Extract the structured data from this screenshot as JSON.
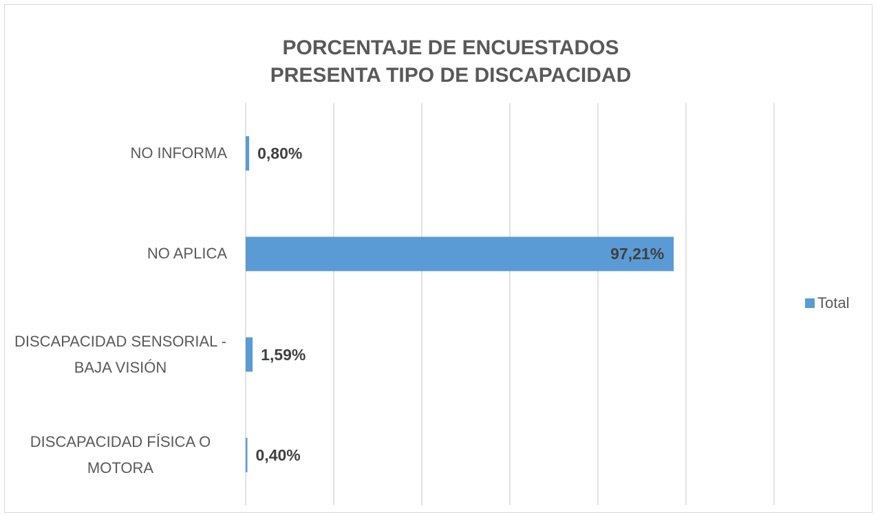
{
  "chart_data": {
    "type": "bar",
    "orientation": "horizontal",
    "title": "PORCENTAJE DE ENCUESTADOS PRESENTA TIPO DE DISCAPACIDAD",
    "categories": [
      "NO INFORMA",
      "NO APLICA",
      "DISCAPACIDAD SENSORIAL - BAJA VISIÓN",
      "DISCAPACIDAD FÍSICA O MOTORA"
    ],
    "series": [
      {
        "name": "Total",
        "color": "#5b9bd5",
        "values": [
          0.8,
          97.21,
          1.59,
          0.4
        ],
        "value_labels": [
          "0,80%",
          "97,21%",
          "1,59%",
          "0,40%"
        ]
      }
    ],
    "xlim": [
      0,
      120
    ],
    "xticks": [
      0,
      20,
      40,
      60,
      80,
      100,
      120
    ],
    "grid": true,
    "legend": "right"
  }
}
